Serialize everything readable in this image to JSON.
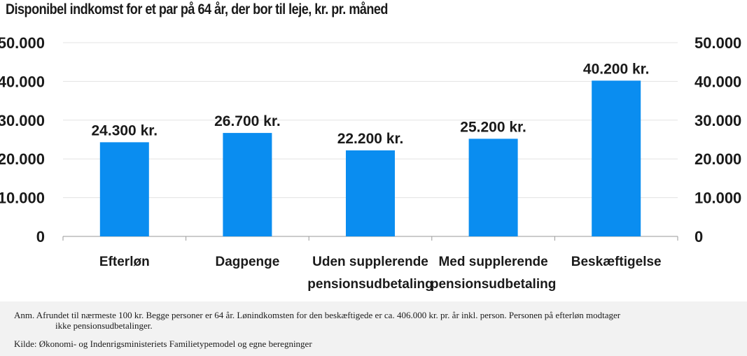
{
  "title": "Disponibel indkomst for et par på 64 år, der bor til leje, kr. pr. måned",
  "chart_data": {
    "type": "bar",
    "categories": [
      [
        "Efterløn"
      ],
      [
        "Dagpenge"
      ],
      [
        "Uden supplerende",
        "pensionsudbetaling"
      ],
      [
        "Med supplerende",
        "pensionsudbetaling"
      ],
      [
        "Beskæftigelse"
      ]
    ],
    "values": [
      24300,
      26700,
      22200,
      25200,
      40200
    ],
    "data_labels": [
      "24.300 kr.",
      "26.700 kr.",
      "22.200 kr.",
      "25.200 kr.",
      "40.200 kr."
    ],
    "ylim": [
      0,
      50000
    ],
    "yticks": [
      0,
      10000,
      20000,
      30000,
      40000,
      50000
    ],
    "ytick_labels": [
      "0",
      "10.000",
      "20.000",
      "30.000",
      "40.000",
      "50.000"
    ],
    "axes": "left and right",
    "grid": true,
    "bar_color": "#0a8df0",
    "grid_color": "#e3e3e3"
  },
  "footer": {
    "note_line1": "Anm. Afrundet til nærmeste 100 kr. Begge personer er 64 år. Lønindkomsten for den beskæftigede er ca. 406.000 kr. pr. år inkl. person. Personen på efterløn modtager",
    "note_line2": "ikke pensionsudbetalinger.",
    "source": "Kilde: Økonomi- og Indenrigsministeriets Familietypemodel og egne beregninger"
  }
}
